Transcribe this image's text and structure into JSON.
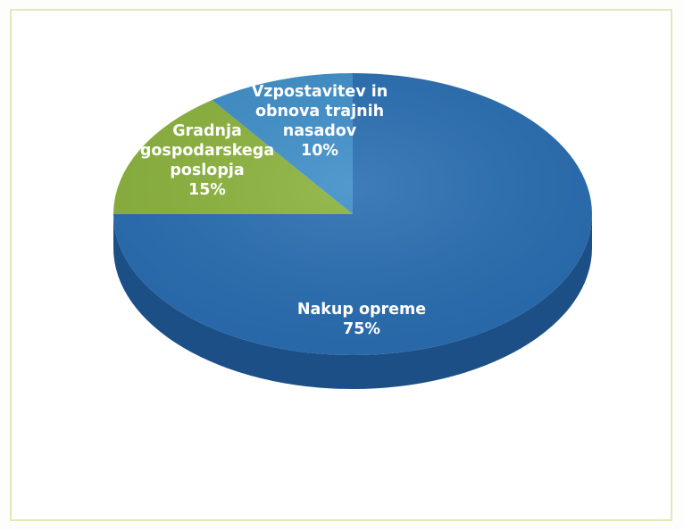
{
  "chart_data": {
    "type": "pie",
    "slices": [
      {
        "name": "Nakup opreme",
        "value": 75,
        "percent_label": "75%",
        "label_lines": [
          "Nakup opreme",
          "75%"
        ],
        "color": "#2a6eb2",
        "side_color": "#1c4f86"
      },
      {
        "name": "Gradnja gospodarskega poslopja",
        "value": 15,
        "percent_label": "15%",
        "label_lines": [
          "Gradnja",
          "gospodarskega",
          "poslopja",
          "15%"
        ],
        "color": "#8cb33e",
        "side_color": "#66862a"
      },
      {
        "name": "Vzpostavitev in obnova trajnih nasadov",
        "value": 10,
        "percent_label": "10%",
        "label_lines": [
          "Vzpostavitev in",
          "obnova trajnih",
          "nasadov",
          "10%"
        ],
        "color": "#3f8fc9",
        "side_color": "#2a6c9e"
      }
    ],
    "title": "",
    "legend": "none",
    "style": "3d"
  }
}
